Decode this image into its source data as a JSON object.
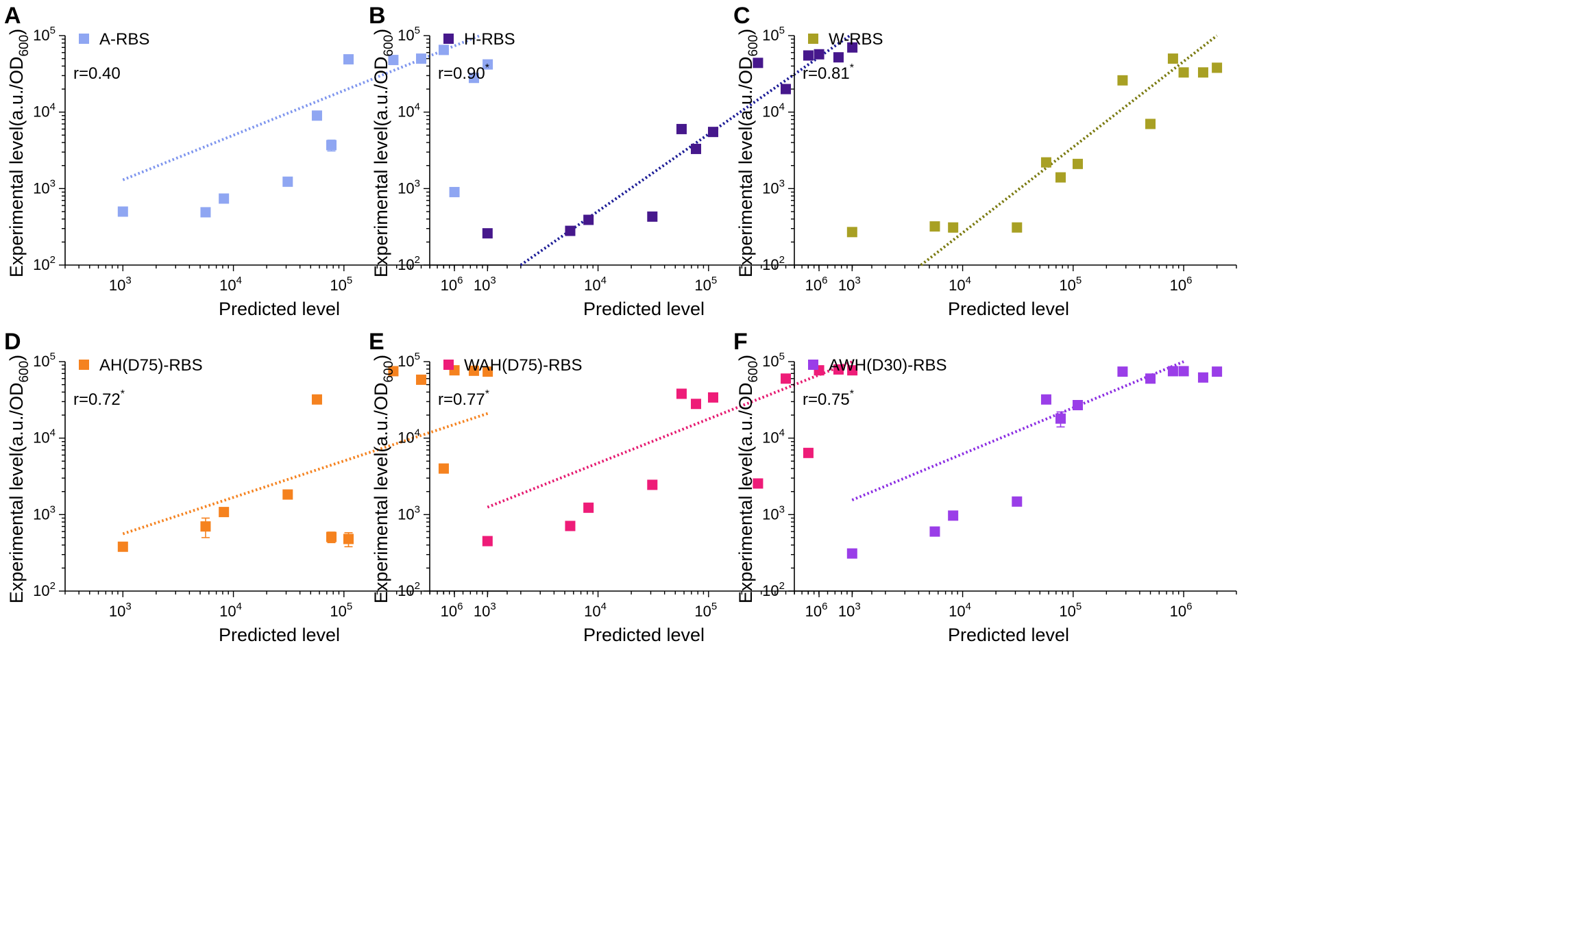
{
  "figure": {
    "x_ticks": [
      3,
      4,
      5,
      6
    ],
    "y_ticks": [
      2,
      3,
      4,
      5
    ],
    "x_label": "Predicted level",
    "y_label_main": "Experimental level(a.u./OD",
    "y_label_sub": "600",
    "y_label_close": ")"
  },
  "chart_data": [
    {
      "panel": "A",
      "type": "scatter",
      "series_name": "A-RBS",
      "r_text": "r=0.40",
      "significant": false,
      "color": "#8fa6f2",
      "line_color": "#7e95ee",
      "xscale": "log",
      "yscale": "log",
      "xlim": [
        300,
        3000000
      ],
      "ylim": [
        100,
        100000
      ],
      "xlabel": "Predicted level",
      "ylabel": "Experimental level(a.u./OD600)",
      "x": [
        1000,
        5600,
        8200,
        31000,
        57000,
        77000,
        110000,
        280000,
        500000,
        800000,
        1000000,
        1500000,
        2000000
      ],
      "y": [
        500,
        490,
        740,
        1230,
        9000,
        3700,
        49000,
        48000,
        50000,
        65000,
        900,
        28000,
        42000
      ],
      "y_err": [
        40,
        50,
        0,
        0,
        0,
        600,
        0,
        0,
        0,
        0,
        0,
        3000,
        0
      ],
      "fit": {
        "x": [
          1000,
          1700000
        ],
        "y": [
          1300,
          100000
        ]
      }
    },
    {
      "panel": "B",
      "type": "scatter",
      "series_name": "H-RBS",
      "r_text": "r=0.90",
      "significant": true,
      "color": "#46188c",
      "line_color": "#1c1c96",
      "xscale": "log",
      "yscale": "log",
      "xlim": [
        300,
        3000000
      ],
      "ylim": [
        100,
        100000
      ],
      "xlabel": "Predicted level",
      "ylabel": "Experimental level(a.u./OD600)",
      "x": [
        1000,
        5600,
        8200,
        31000,
        57000,
        77000,
        110000,
        280000,
        500000,
        800000,
        1000000,
        1500000,
        2000000
      ],
      "y": [
        260,
        280,
        390,
        430,
        6000,
        3300,
        5500,
        44000,
        20000,
        55000,
        57000,
        52000,
        70000
      ],
      "y_err": [
        30,
        0,
        0,
        0,
        0,
        0,
        0,
        0,
        0,
        0,
        0,
        0,
        5000
      ],
      "fit": {
        "x": [
          2000,
          1900000
        ],
        "y": [
          100,
          100000
        ]
      }
    },
    {
      "panel": "C",
      "type": "scatter",
      "series_name": "W-RBS",
      "r_text": "r=0.81",
      "significant": true,
      "color": "#a8a024",
      "line_color": "#7a7a10",
      "xscale": "log",
      "yscale": "log",
      "xlim": [
        300,
        3000000
      ],
      "ylim": [
        100,
        100000
      ],
      "xlabel": "Predicted level",
      "ylabel": "Experimental level(a.u./OD600)",
      "x": [
        1000,
        5600,
        8200,
        31000,
        57000,
        77000,
        110000,
        280000,
        500000,
        800000,
        1000000,
        1500000,
        2000000
      ],
      "y": [
        270,
        320,
        310,
        310,
        2200,
        1400,
        2100,
        26000,
        7000,
        50000,
        33000,
        33000,
        38000
      ],
      "y_err": [
        25,
        40,
        40,
        0,
        0,
        0,
        0,
        0,
        0,
        0,
        0,
        0,
        0
      ],
      "fit": {
        "x": [
          4200,
          2000000
        ],
        "y": [
          100,
          100000
        ]
      }
    },
    {
      "panel": "D",
      "type": "scatter",
      "series_name": "AH(D75)-RBS",
      "r_text": "r=0.72",
      "significant": true,
      "color": "#f5821f",
      "line_color": "#f5821f",
      "xscale": "log",
      "yscale": "log",
      "xlim": [
        300,
        3000000
      ],
      "ylim": [
        100,
        100000
      ],
      "xlabel": "Predicted level",
      "ylabel": "Experimental level(a.u./OD600)",
      "x": [
        1000,
        5600,
        8200,
        31000,
        57000,
        77000,
        110000,
        280000,
        500000,
        800000,
        1000000,
        1500000,
        2000000
      ],
      "y": [
        380,
        700,
        1080,
        1830,
        32000,
        510,
        480,
        75000,
        58000,
        4000,
        77000,
        76000,
        74000
      ],
      "y_err": [
        40,
        200,
        0,
        0,
        0,
        80,
        100,
        0,
        0,
        0,
        0,
        0,
        0
      ],
      "fit": {
        "x": [
          1000,
          2000000
        ],
        "y": [
          560,
          21000
        ]
      }
    },
    {
      "panel": "E",
      "type": "scatter",
      "series_name": "WAH(D75)-RBS",
      "r_text": "r=0.77",
      "significant": true,
      "color": "#ee1c78",
      "line_color": "#e5196f",
      "xscale": "log",
      "yscale": "log",
      "xlim": [
        300,
        3000000
      ],
      "ylim": [
        100,
        100000
      ],
      "xlabel": "Predicted level",
      "ylabel": "Experimental level(a.u./OD600)",
      "x": [
        1000,
        5600,
        8200,
        31000,
        57000,
        77000,
        110000,
        280000,
        500000,
        800000,
        1000000,
        1500000,
        2000000
      ],
      "y": [
        450,
        710,
        1230,
        2450,
        38000,
        28000,
        34000,
        2550,
        60000,
        6400,
        77000,
        79000,
        77000
      ],
      "y_err": [
        0,
        0,
        0,
        0,
        0,
        0,
        0,
        200,
        0,
        0,
        0,
        0,
        0
      ],
      "fit": {
        "x": [
          1000,
          2000000
        ],
        "y": [
          1250,
          100000
        ]
      }
    },
    {
      "panel": "F",
      "type": "scatter",
      "series_name": "AWH(D30)-RBS",
      "r_text": "r=0.75",
      "significant": true,
      "color": "#9a3ee8",
      "line_color": "#8a2be2",
      "xscale": "log",
      "yscale": "log",
      "xlim": [
        300,
        3000000
      ],
      "ylim": [
        100,
        100000
      ],
      "xlabel": "Predicted level",
      "ylabel": "Experimental level(a.u./OD600)",
      "x": [
        1000,
        5600,
        8200,
        31000,
        57000,
        77000,
        110000,
        280000,
        500000,
        800000,
        1000000,
        1500000,
        2000000
      ],
      "y": [
        310,
        600,
        970,
        1480,
        32000,
        18000,
        27000,
        74000,
        60000,
        75000,
        75000,
        62000,
        74000
      ],
      "y_err": [
        0,
        0,
        0,
        0,
        0,
        4000,
        0,
        0,
        0,
        0,
        0,
        0,
        0
      ],
      "fit": {
        "x": [
          1000,
          1000000
        ],
        "y": [
          1550,
          100000
        ]
      }
    }
  ]
}
